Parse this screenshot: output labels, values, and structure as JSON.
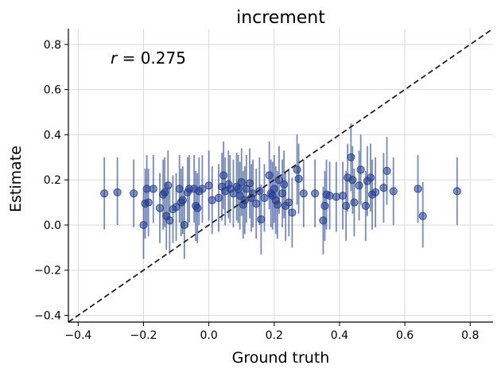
{
  "chart_data": {
    "type": "scatter",
    "title": "increment",
    "xlabel": "Ground truth",
    "ylabel": "Estimate",
    "annotation": {
      "italic": "r",
      "rest": " = 0.275"
    },
    "xlim": [
      -0.43,
      0.87
    ],
    "ylim": [
      -0.43,
      0.87
    ],
    "xticks": [
      -0.4,
      -0.2,
      0.0,
      0.2,
      0.4,
      0.6,
      0.8
    ],
    "yticks": [
      -0.4,
      -0.2,
      0.0,
      0.2,
      0.4,
      0.6,
      0.8
    ],
    "xtick_labels": [
      "−0.4",
      "−0.2",
      "0.0",
      "0.2",
      "0.4",
      "0.6",
      "0.8"
    ],
    "ytick_labels": [
      "−0.4",
      "−0.2",
      "0.0",
      "0.2",
      "0.4",
      "0.6",
      "0.8"
    ],
    "grid": true,
    "reference_line": "y = x",
    "point_color": "#1f3a8a",
    "points": [
      {
        "x": -0.32,
        "y": 0.14,
        "lo": -0.02,
        "hi": 0.3
      },
      {
        "x": -0.28,
        "y": 0.145,
        "lo": 0.0,
        "hi": 0.3
      },
      {
        "x": -0.23,
        "y": 0.14,
        "lo": -0.01,
        "hi": 0.29
      },
      {
        "x": -0.2,
        "y": 0.0,
        "lo": -0.15,
        "hi": 0.15
      },
      {
        "x": -0.195,
        "y": 0.095,
        "lo": -0.06,
        "hi": 0.25
      },
      {
        "x": -0.19,
        "y": 0.16,
        "lo": 0.0,
        "hi": 0.31
      },
      {
        "x": -0.185,
        "y": 0.1,
        "lo": -0.05,
        "hi": 0.25
      },
      {
        "x": -0.17,
        "y": 0.16,
        "lo": 0.01,
        "hi": 0.31
      },
      {
        "x": -0.15,
        "y": 0.075,
        "lo": -0.08,
        "hi": 0.23
      },
      {
        "x": -0.14,
        "y": 0.135,
        "lo": -0.02,
        "hi": 0.29
      },
      {
        "x": -0.135,
        "y": 0.145,
        "lo": -0.01,
        "hi": 0.3
      },
      {
        "x": -0.13,
        "y": 0.04,
        "lo": -0.11,
        "hi": 0.19
      },
      {
        "x": -0.125,
        "y": 0.175,
        "lo": 0.02,
        "hi": 0.33
      },
      {
        "x": -0.12,
        "y": 0.02,
        "lo": -0.13,
        "hi": 0.17
      },
      {
        "x": -0.11,
        "y": 0.07,
        "lo": -0.08,
        "hi": 0.22
      },
      {
        "x": -0.1,
        "y": 0.08,
        "lo": -0.07,
        "hi": 0.23
      },
      {
        "x": -0.09,
        "y": 0.16,
        "lo": 0.01,
        "hi": 0.31
      },
      {
        "x": -0.085,
        "y": 0.1,
        "lo": -0.05,
        "hi": 0.25
      },
      {
        "x": -0.08,
        "y": 0.11,
        "lo": -0.04,
        "hi": 0.26
      },
      {
        "x": -0.075,
        "y": 0.0,
        "lo": -0.15,
        "hi": 0.15
      },
      {
        "x": -0.065,
        "y": 0.145,
        "lo": -0.01,
        "hi": 0.3
      },
      {
        "x": -0.06,
        "y": 0.16,
        "lo": 0.01,
        "hi": 0.31
      },
      {
        "x": -0.045,
        "y": 0.16,
        "lo": 0.01,
        "hi": 0.31
      },
      {
        "x": -0.04,
        "y": 0.085,
        "lo": -0.07,
        "hi": 0.24
      },
      {
        "x": -0.035,
        "y": 0.075,
        "lo": -0.08,
        "hi": 0.23
      },
      {
        "x": -0.03,
        "y": 0.15,
        "lo": 0.0,
        "hi": 0.3
      },
      {
        "x": -0.02,
        "y": 0.16,
        "lo": 0.01,
        "hi": 0.31
      },
      {
        "x": 0.0,
        "y": 0.175,
        "lo": 0.02,
        "hi": 0.33
      },
      {
        "x": 0.01,
        "y": 0.11,
        "lo": -0.04,
        "hi": 0.26
      },
      {
        "x": 0.03,
        "y": 0.12,
        "lo": -0.03,
        "hi": 0.27
      },
      {
        "x": 0.04,
        "y": 0.17,
        "lo": 0.02,
        "hi": 0.32
      },
      {
        "x": 0.045,
        "y": 0.22,
        "lo": 0.07,
        "hi": 0.37
      },
      {
        "x": 0.05,
        "y": 0.15,
        "lo": 0.0,
        "hi": 0.3
      },
      {
        "x": 0.06,
        "y": 0.18,
        "lo": 0.03,
        "hi": 0.33
      },
      {
        "x": 0.065,
        "y": 0.16,
        "lo": 0.01,
        "hi": 0.31
      },
      {
        "x": 0.075,
        "y": 0.14,
        "lo": -0.01,
        "hi": 0.29
      },
      {
        "x": 0.085,
        "y": 0.17,
        "lo": 0.02,
        "hi": 0.32
      },
      {
        "x": 0.09,
        "y": 0.16,
        "lo": 0.01,
        "hi": 0.31
      },
      {
        "x": 0.095,
        "y": 0.13,
        "lo": -0.02,
        "hi": 0.28
      },
      {
        "x": 0.1,
        "y": 0.19,
        "lo": 0.04,
        "hi": 0.34
      },
      {
        "x": 0.105,
        "y": 0.09,
        "lo": -0.06,
        "hi": 0.24
      },
      {
        "x": 0.11,
        "y": 0.11,
        "lo": -0.04,
        "hi": 0.26
      },
      {
        "x": 0.115,
        "y": 0.16,
        "lo": 0.01,
        "hi": 0.31
      },
      {
        "x": 0.125,
        "y": 0.185,
        "lo": 0.03,
        "hi": 0.34
      },
      {
        "x": 0.13,
        "y": 0.12,
        "lo": -0.03,
        "hi": 0.27
      },
      {
        "x": 0.135,
        "y": 0.14,
        "lo": -0.01,
        "hi": 0.29
      },
      {
        "x": 0.145,
        "y": 0.095,
        "lo": -0.06,
        "hi": 0.25
      },
      {
        "x": 0.155,
        "y": 0.15,
        "lo": 0.0,
        "hi": 0.3
      },
      {
        "x": 0.16,
        "y": 0.025,
        "lo": -0.13,
        "hi": 0.18
      },
      {
        "x": 0.17,
        "y": 0.12,
        "lo": -0.03,
        "hi": 0.27
      },
      {
        "x": 0.185,
        "y": 0.22,
        "lo": 0.07,
        "hi": 0.37
      },
      {
        "x": 0.19,
        "y": 0.14,
        "lo": -0.01,
        "hi": 0.29
      },
      {
        "x": 0.195,
        "y": 0.13,
        "lo": -0.02,
        "hi": 0.28
      },
      {
        "x": 0.2,
        "y": 0.16,
        "lo": 0.01,
        "hi": 0.31
      },
      {
        "x": 0.205,
        "y": 0.11,
        "lo": -0.04,
        "hi": 0.26
      },
      {
        "x": 0.21,
        "y": 0.09,
        "lo": -0.06,
        "hi": 0.24
      },
      {
        "x": 0.215,
        "y": 0.2,
        "lo": 0.05,
        "hi": 0.35
      },
      {
        "x": 0.225,
        "y": 0.14,
        "lo": -0.01,
        "hi": 0.29
      },
      {
        "x": 0.23,
        "y": 0.18,
        "lo": 0.03,
        "hi": 0.33
      },
      {
        "x": 0.235,
        "y": 0.085,
        "lo": -0.07,
        "hi": 0.24
      },
      {
        "x": 0.245,
        "y": 0.1,
        "lo": -0.05,
        "hi": 0.25
      },
      {
        "x": 0.255,
        "y": 0.055,
        "lo": -0.1,
        "hi": 0.21
      },
      {
        "x": 0.27,
        "y": 0.245,
        "lo": 0.09,
        "hi": 0.4
      },
      {
        "x": 0.275,
        "y": 0.205,
        "lo": 0.05,
        "hi": 0.36
      },
      {
        "x": 0.29,
        "y": 0.14,
        "lo": -0.01,
        "hi": 0.29
      },
      {
        "x": 0.325,
        "y": 0.14,
        "lo": -0.01,
        "hi": 0.29
      },
      {
        "x": 0.35,
        "y": 0.02,
        "lo": -0.13,
        "hi": 0.17
      },
      {
        "x": 0.355,
        "y": 0.085,
        "lo": -0.07,
        "hi": 0.24
      },
      {
        "x": 0.36,
        "y": 0.135,
        "lo": -0.02,
        "hi": 0.29
      },
      {
        "x": 0.37,
        "y": 0.13,
        "lo": -0.02,
        "hi": 0.28
      },
      {
        "x": 0.39,
        "y": 0.125,
        "lo": -0.03,
        "hi": 0.28
      },
      {
        "x": 0.41,
        "y": 0.13,
        "lo": -0.02,
        "hi": 0.28
      },
      {
        "x": 0.42,
        "y": 0.085,
        "lo": -0.07,
        "hi": 0.24
      },
      {
        "x": 0.425,
        "y": 0.21,
        "lo": 0.06,
        "hi": 0.36
      },
      {
        "x": 0.435,
        "y": 0.3,
        "lo": 0.15,
        "hi": 0.45
      },
      {
        "x": 0.44,
        "y": 0.2,
        "lo": 0.05,
        "hi": 0.35
      },
      {
        "x": 0.445,
        "y": 0.1,
        "lo": -0.05,
        "hi": 0.25
      },
      {
        "x": 0.46,
        "y": 0.175,
        "lo": 0.02,
        "hi": 0.33
      },
      {
        "x": 0.465,
        "y": 0.245,
        "lo": 0.09,
        "hi": 0.4
      },
      {
        "x": 0.48,
        "y": 0.085,
        "lo": -0.07,
        "hi": 0.24
      },
      {
        "x": 0.485,
        "y": 0.195,
        "lo": 0.04,
        "hi": 0.35
      },
      {
        "x": 0.495,
        "y": 0.21,
        "lo": 0.06,
        "hi": 0.36
      },
      {
        "x": 0.5,
        "y": 0.135,
        "lo": -0.02,
        "hi": 0.29
      },
      {
        "x": 0.51,
        "y": 0.145,
        "lo": -0.01,
        "hi": 0.3
      },
      {
        "x": 0.535,
        "y": 0.165,
        "lo": 0.01,
        "hi": 0.32
      },
      {
        "x": 0.545,
        "y": 0.24,
        "lo": 0.09,
        "hi": 0.39
      },
      {
        "x": 0.565,
        "y": 0.15,
        "lo": 0.0,
        "hi": 0.3
      },
      {
        "x": 0.64,
        "y": 0.16,
        "lo": 0.01,
        "hi": 0.31
      },
      {
        "x": 0.655,
        "y": 0.04,
        "lo": -0.1,
        "hi": 0.19
      },
      {
        "x": 0.76,
        "y": 0.15,
        "lo": 0.0,
        "hi": 0.3
      }
    ]
  }
}
